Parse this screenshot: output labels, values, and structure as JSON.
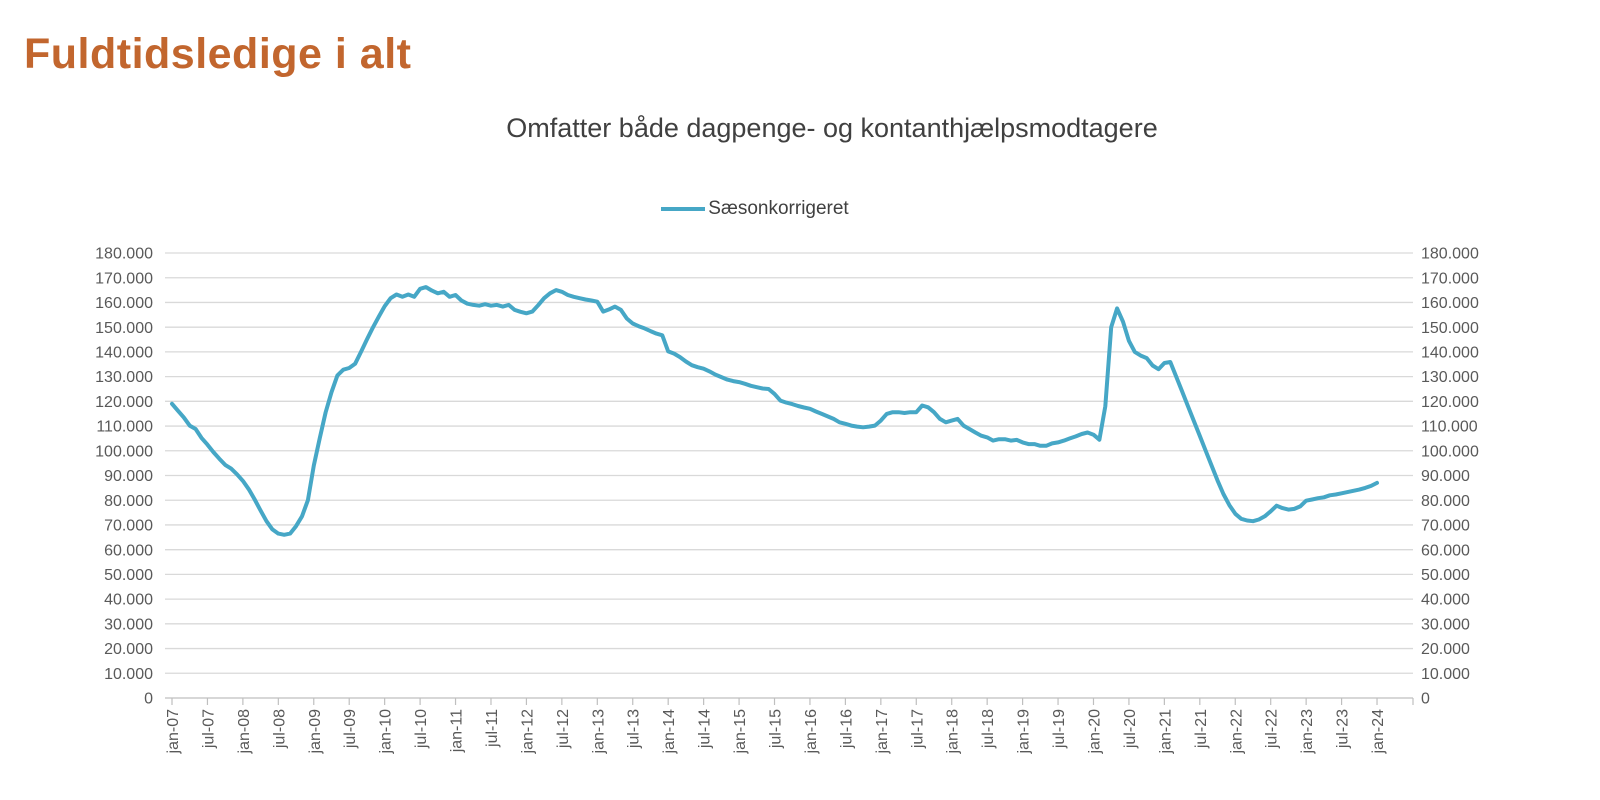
{
  "page": {
    "title": "Fuldtidsledige i alt"
  },
  "chart_data": {
    "type": "line",
    "title": "Omfatter både dagpenge- og kontanthjælpsmodtagere",
    "legend_position": "top",
    "grid": true,
    "x_start": "jan-07",
    "x_end": "jan-24",
    "frequency": "monthly",
    "x_tick_labels": [
      "jan-07",
      "jul-07",
      "jan-08",
      "jul-08",
      "jan-09",
      "jul-09",
      "jan-10",
      "jul-10",
      "jan-11",
      "jul-11",
      "jan-12",
      "jul-12",
      "jan-13",
      "jul-13",
      "jan-14",
      "jul-14",
      "jan-15",
      "jul-15",
      "jan-16",
      "jul-16",
      "jan-17",
      "jul-17",
      "jan-18",
      "jul-18",
      "jan-19",
      "jul-19",
      "jan-20",
      "jul-20",
      "jan-21",
      "jul-21",
      "jan-22",
      "jul-22",
      "jan-23",
      "jul-23",
      "jan-24"
    ],
    "ylim": [
      0,
      180000
    ],
    "y_tick_interval": 10000,
    "y_tick_labels": [
      "0",
      "10.000",
      "20.000",
      "30.000",
      "40.000",
      "50.000",
      "60.000",
      "70.000",
      "80.000",
      "90.000",
      "100.000",
      "110.000",
      "120.000",
      "130.000",
      "140.000",
      "150.000",
      "160.000",
      "170.000",
      "180.000"
    ],
    "colors": {
      "series": "#46A7C6",
      "gridline": "#D9D9D9",
      "axis": "#BFBFBF",
      "axis_text": "#595959",
      "title_text": "#C2662E",
      "subtitle_text": "#404040"
    },
    "series": [
      {
        "name": "Sæsonkorrigeret",
        "color": "#46A7C6",
        "values": [
          119000,
          116200,
          113500,
          110200,
          108800,
          105200,
          102500,
          99500,
          96800,
          94300,
          92800,
          90500,
          87800,
          84400,
          80300,
          75800,
          71500,
          68200,
          66500,
          66000,
          66500,
          69500,
          73500,
          80000,
          94000,
          105000,
          115500,
          123700,
          130500,
          132800,
          133500,
          135200,
          140000,
          145000,
          149800,
          154200,
          158500,
          161700,
          163200,
          162300,
          163200,
          162300,
          165500,
          166200,
          164800,
          163700,
          164300,
          162300,
          163000,
          160800,
          159500,
          159000,
          158700,
          159300,
          158700,
          159000,
          158300,
          159000,
          157000,
          156200,
          155600,
          156300,
          158900,
          161700,
          163700,
          165000,
          164300,
          163000,
          162300,
          161700,
          161200,
          160800,
          160300,
          156300,
          157200,
          158300,
          157000,
          153500,
          151500,
          150400,
          149500,
          148400,
          147400,
          146700,
          140200,
          139300,
          137900,
          136100,
          134600,
          133800,
          133200,
          132100,
          130800,
          129800,
          128800,
          128200,
          127800,
          127100,
          126300,
          125700,
          125200,
          125000,
          123000,
          120300,
          119500,
          118900,
          118100,
          117500,
          117000,
          115900,
          114900,
          113900,
          112900,
          111500,
          110900,
          110200,
          109800,
          109500,
          109800,
          110200,
          112200,
          114900,
          115600,
          115600,
          115300,
          115600,
          115600,
          118300,
          117600,
          115600,
          112900,
          111500,
          112200,
          112900,
          110200,
          108800,
          107400,
          106100,
          105400,
          104100,
          104700,
          104700,
          104100,
          104400,
          103400,
          102700,
          102700,
          102000,
          102000,
          103000,
          103400,
          104100,
          105000,
          105800,
          106800,
          107400,
          106500,
          104500,
          118000,
          150000,
          157600,
          152200,
          144500,
          140000,
          138500,
          137500,
          134500,
          133000,
          135500,
          135900,
          130000,
          124000,
          118000,
          112000,
          106000,
          100000,
          94000,
          88000,
          82500,
          78000,
          74500,
          72500,
          71800,
          71500,
          72200,
          73500,
          75500,
          77800,
          76800,
          76200,
          76500,
          77500,
          79800,
          80300,
          80800,
          81200,
          82000,
          82300,
          82800,
          83300,
          83800,
          84300,
          85000,
          85800,
          87000
        ]
      }
    ]
  }
}
